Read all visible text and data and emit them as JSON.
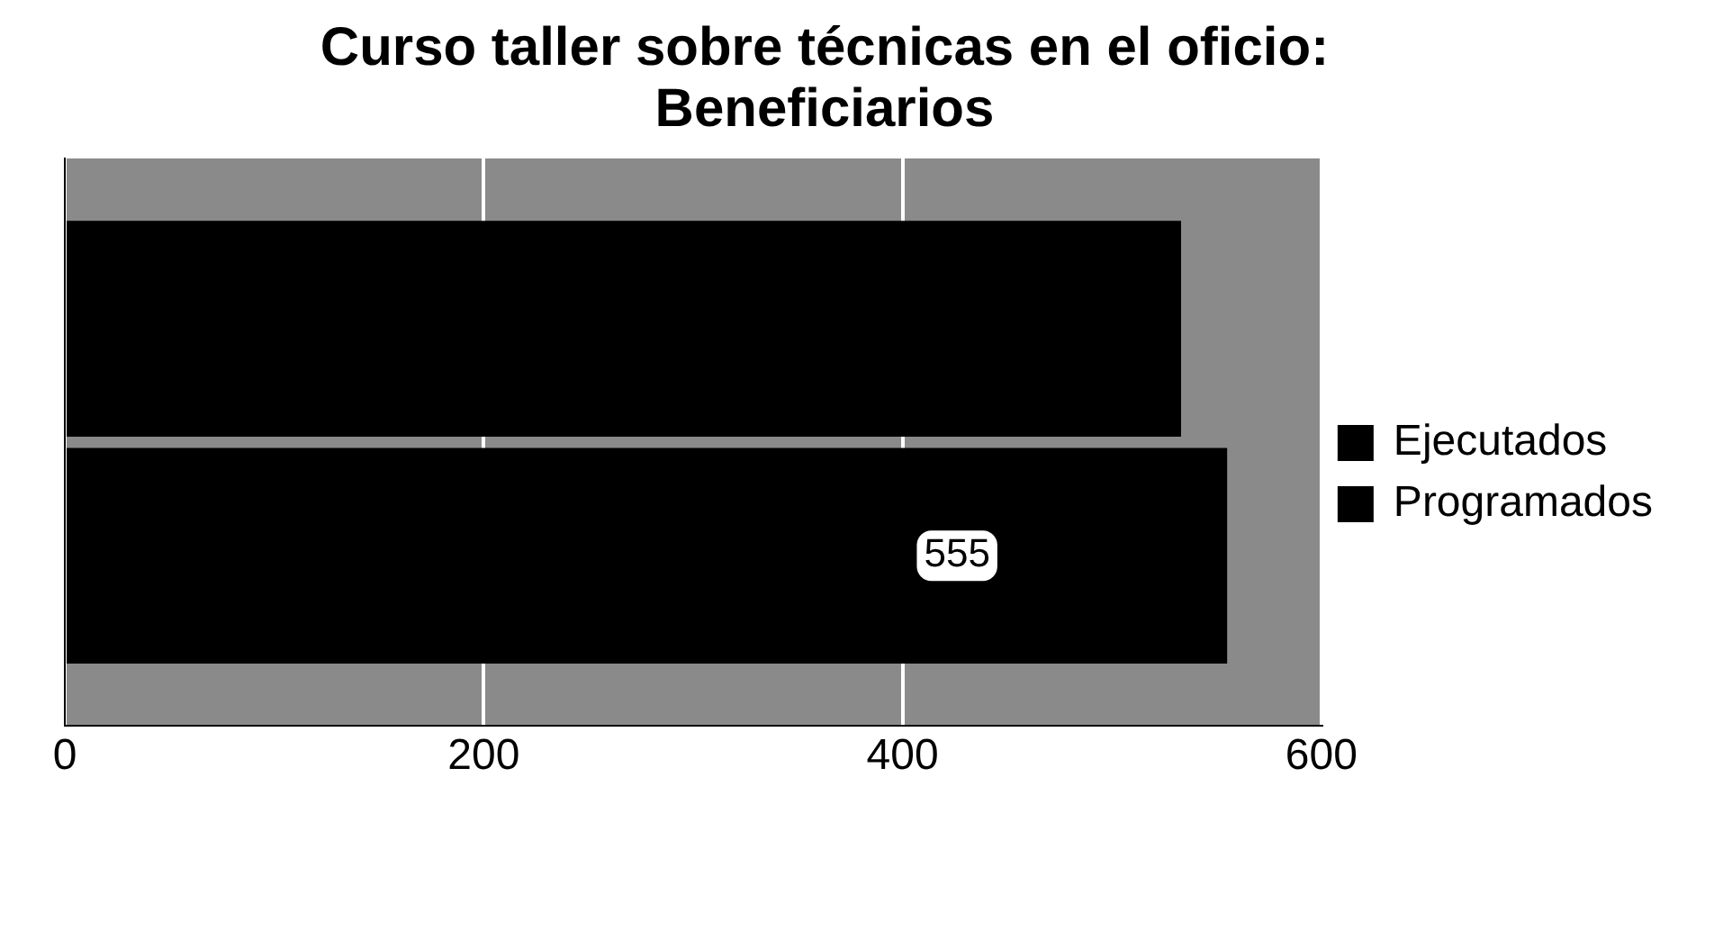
{
  "chart_data": {
    "type": "bar",
    "orientation": "horizontal",
    "title": "Curso taller sobre técnicas en el oficio: Beneficiarios",
    "categories": [
      null
    ],
    "series": [
      {
        "name": "Ejecutados",
        "color": "#000000",
        "values": [
          533
        ],
        "value_labels": [
          null
        ]
      },
      {
        "name": "Programados",
        "color": "#000000",
        "values": [
          555
        ],
        "value_labels": [
          "555"
        ]
      }
    ],
    "xlim": [
      0,
      600
    ],
    "xticks": [
      0,
      200,
      400,
      600
    ],
    "grid": "x",
    "legend": "right"
  }
}
